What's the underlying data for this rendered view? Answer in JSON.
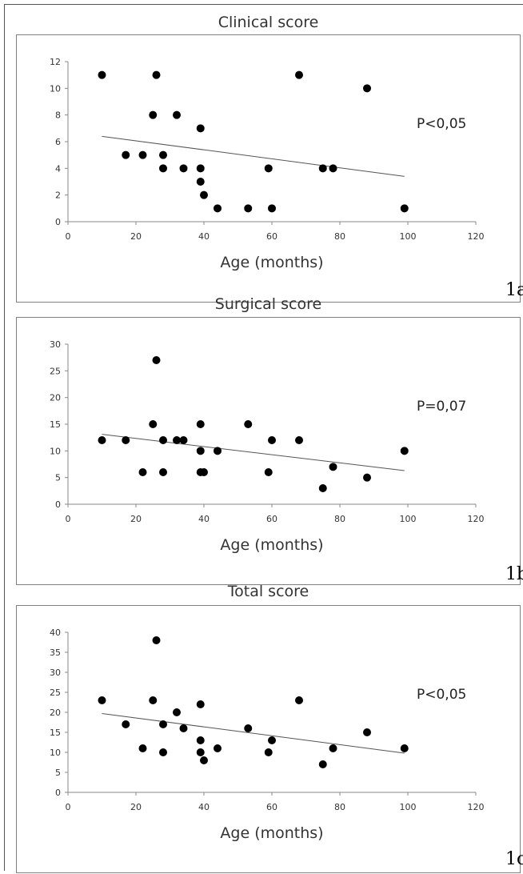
{
  "chart_data": [
    {
      "type": "scatter",
      "title": "Clinical score",
      "xlabel": "Age (months)",
      "ylabel": "",
      "xlim": [
        0,
        120
      ],
      "ylim": [
        0,
        12
      ],
      "xticks": [
        0,
        20,
        40,
        60,
        80,
        100,
        120
      ],
      "yticks": [
        0,
        2,
        4,
        6,
        8,
        10,
        12
      ],
      "grid": false,
      "annotation": "P<0,05",
      "figure_label": "1a",
      "trendline": {
        "x": [
          10,
          99
        ],
        "y": [
          6.4,
          3.4
        ]
      },
      "points": [
        {
          "x": 10,
          "y": 11
        },
        {
          "x": 17,
          "y": 5
        },
        {
          "x": 22,
          "y": 5
        },
        {
          "x": 25,
          "y": 8
        },
        {
          "x": 26,
          "y": 11
        },
        {
          "x": 28,
          "y": 5
        },
        {
          "x": 28,
          "y": 4
        },
        {
          "x": 32,
          "y": 8
        },
        {
          "x": 34,
          "y": 4
        },
        {
          "x": 39,
          "y": 7
        },
        {
          "x": 39,
          "y": 4
        },
        {
          "x": 39,
          "y": 3
        },
        {
          "x": 40,
          "y": 2
        },
        {
          "x": 44,
          "y": 1
        },
        {
          "x": 53,
          "y": 1
        },
        {
          "x": 59,
          "y": 4
        },
        {
          "x": 60,
          "y": 1
        },
        {
          "x": 68,
          "y": 11
        },
        {
          "x": 75,
          "y": 4
        },
        {
          "x": 78,
          "y": 4
        },
        {
          "x": 88,
          "y": 10
        },
        {
          "x": 99,
          "y": 1
        }
      ]
    },
    {
      "type": "scatter",
      "title": "Surgical score",
      "xlabel": "Age (months)",
      "ylabel": "",
      "xlim": [
        0,
        120
      ],
      "ylim": [
        0,
        30
      ],
      "xticks": [
        0,
        20,
        40,
        60,
        80,
        100,
        120
      ],
      "yticks": [
        0,
        5,
        10,
        15,
        20,
        25,
        30
      ],
      "grid": false,
      "annotation": "P=0,07",
      "figure_label": "1b",
      "trendline": {
        "x": [
          10,
          99
        ],
        "y": [
          13.1,
          6.3
        ]
      },
      "points": [
        {
          "x": 10,
          "y": 12
        },
        {
          "x": 17,
          "y": 12
        },
        {
          "x": 22,
          "y": 6
        },
        {
          "x": 25,
          "y": 15
        },
        {
          "x": 26,
          "y": 27
        },
        {
          "x": 28,
          "y": 12
        },
        {
          "x": 28,
          "y": 6
        },
        {
          "x": 32,
          "y": 12
        },
        {
          "x": 34,
          "y": 12
        },
        {
          "x": 39,
          "y": 15
        },
        {
          "x": 39,
          "y": 10
        },
        {
          "x": 39,
          "y": 6
        },
        {
          "x": 40,
          "y": 6
        },
        {
          "x": 44,
          "y": 10
        },
        {
          "x": 53,
          "y": 15
        },
        {
          "x": 59,
          "y": 6
        },
        {
          "x": 60,
          "y": 12
        },
        {
          "x": 68,
          "y": 12
        },
        {
          "x": 75,
          "y": 3
        },
        {
          "x": 78,
          "y": 7
        },
        {
          "x": 88,
          "y": 5
        },
        {
          "x": 99,
          "y": 10
        }
      ]
    },
    {
      "type": "scatter",
      "title": "Total score",
      "xlabel": "Age (months)",
      "ylabel": "",
      "xlim": [
        0,
        120
      ],
      "ylim": [
        0,
        40
      ],
      "xticks": [
        0,
        20,
        40,
        60,
        80,
        100,
        120
      ],
      "yticks": [
        0,
        5,
        10,
        15,
        20,
        25,
        30,
        35,
        40
      ],
      "grid": false,
      "annotation": "P<0,05",
      "figure_label": "1c",
      "trendline": {
        "x": [
          10,
          99
        ],
        "y": [
          19.7,
          9.8
        ]
      },
      "points": [
        {
          "x": 10,
          "y": 23
        },
        {
          "x": 17,
          "y": 17
        },
        {
          "x": 22,
          "y": 11
        },
        {
          "x": 25,
          "y": 23
        },
        {
          "x": 26,
          "y": 38
        },
        {
          "x": 28,
          "y": 17
        },
        {
          "x": 28,
          "y": 10
        },
        {
          "x": 32,
          "y": 20
        },
        {
          "x": 34,
          "y": 16
        },
        {
          "x": 39,
          "y": 22
        },
        {
          "x": 39,
          "y": 13
        },
        {
          "x": 39,
          "y": 10
        },
        {
          "x": 40,
          "y": 8
        },
        {
          "x": 44,
          "y": 11
        },
        {
          "x": 53,
          "y": 16
        },
        {
          "x": 59,
          "y": 10
        },
        {
          "x": 60,
          "y": 13
        },
        {
          "x": 68,
          "y": 23
        },
        {
          "x": 75,
          "y": 7
        },
        {
          "x": 78,
          "y": 11
        },
        {
          "x": 88,
          "y": 15
        },
        {
          "x": 99,
          "y": 11
        }
      ]
    }
  ]
}
